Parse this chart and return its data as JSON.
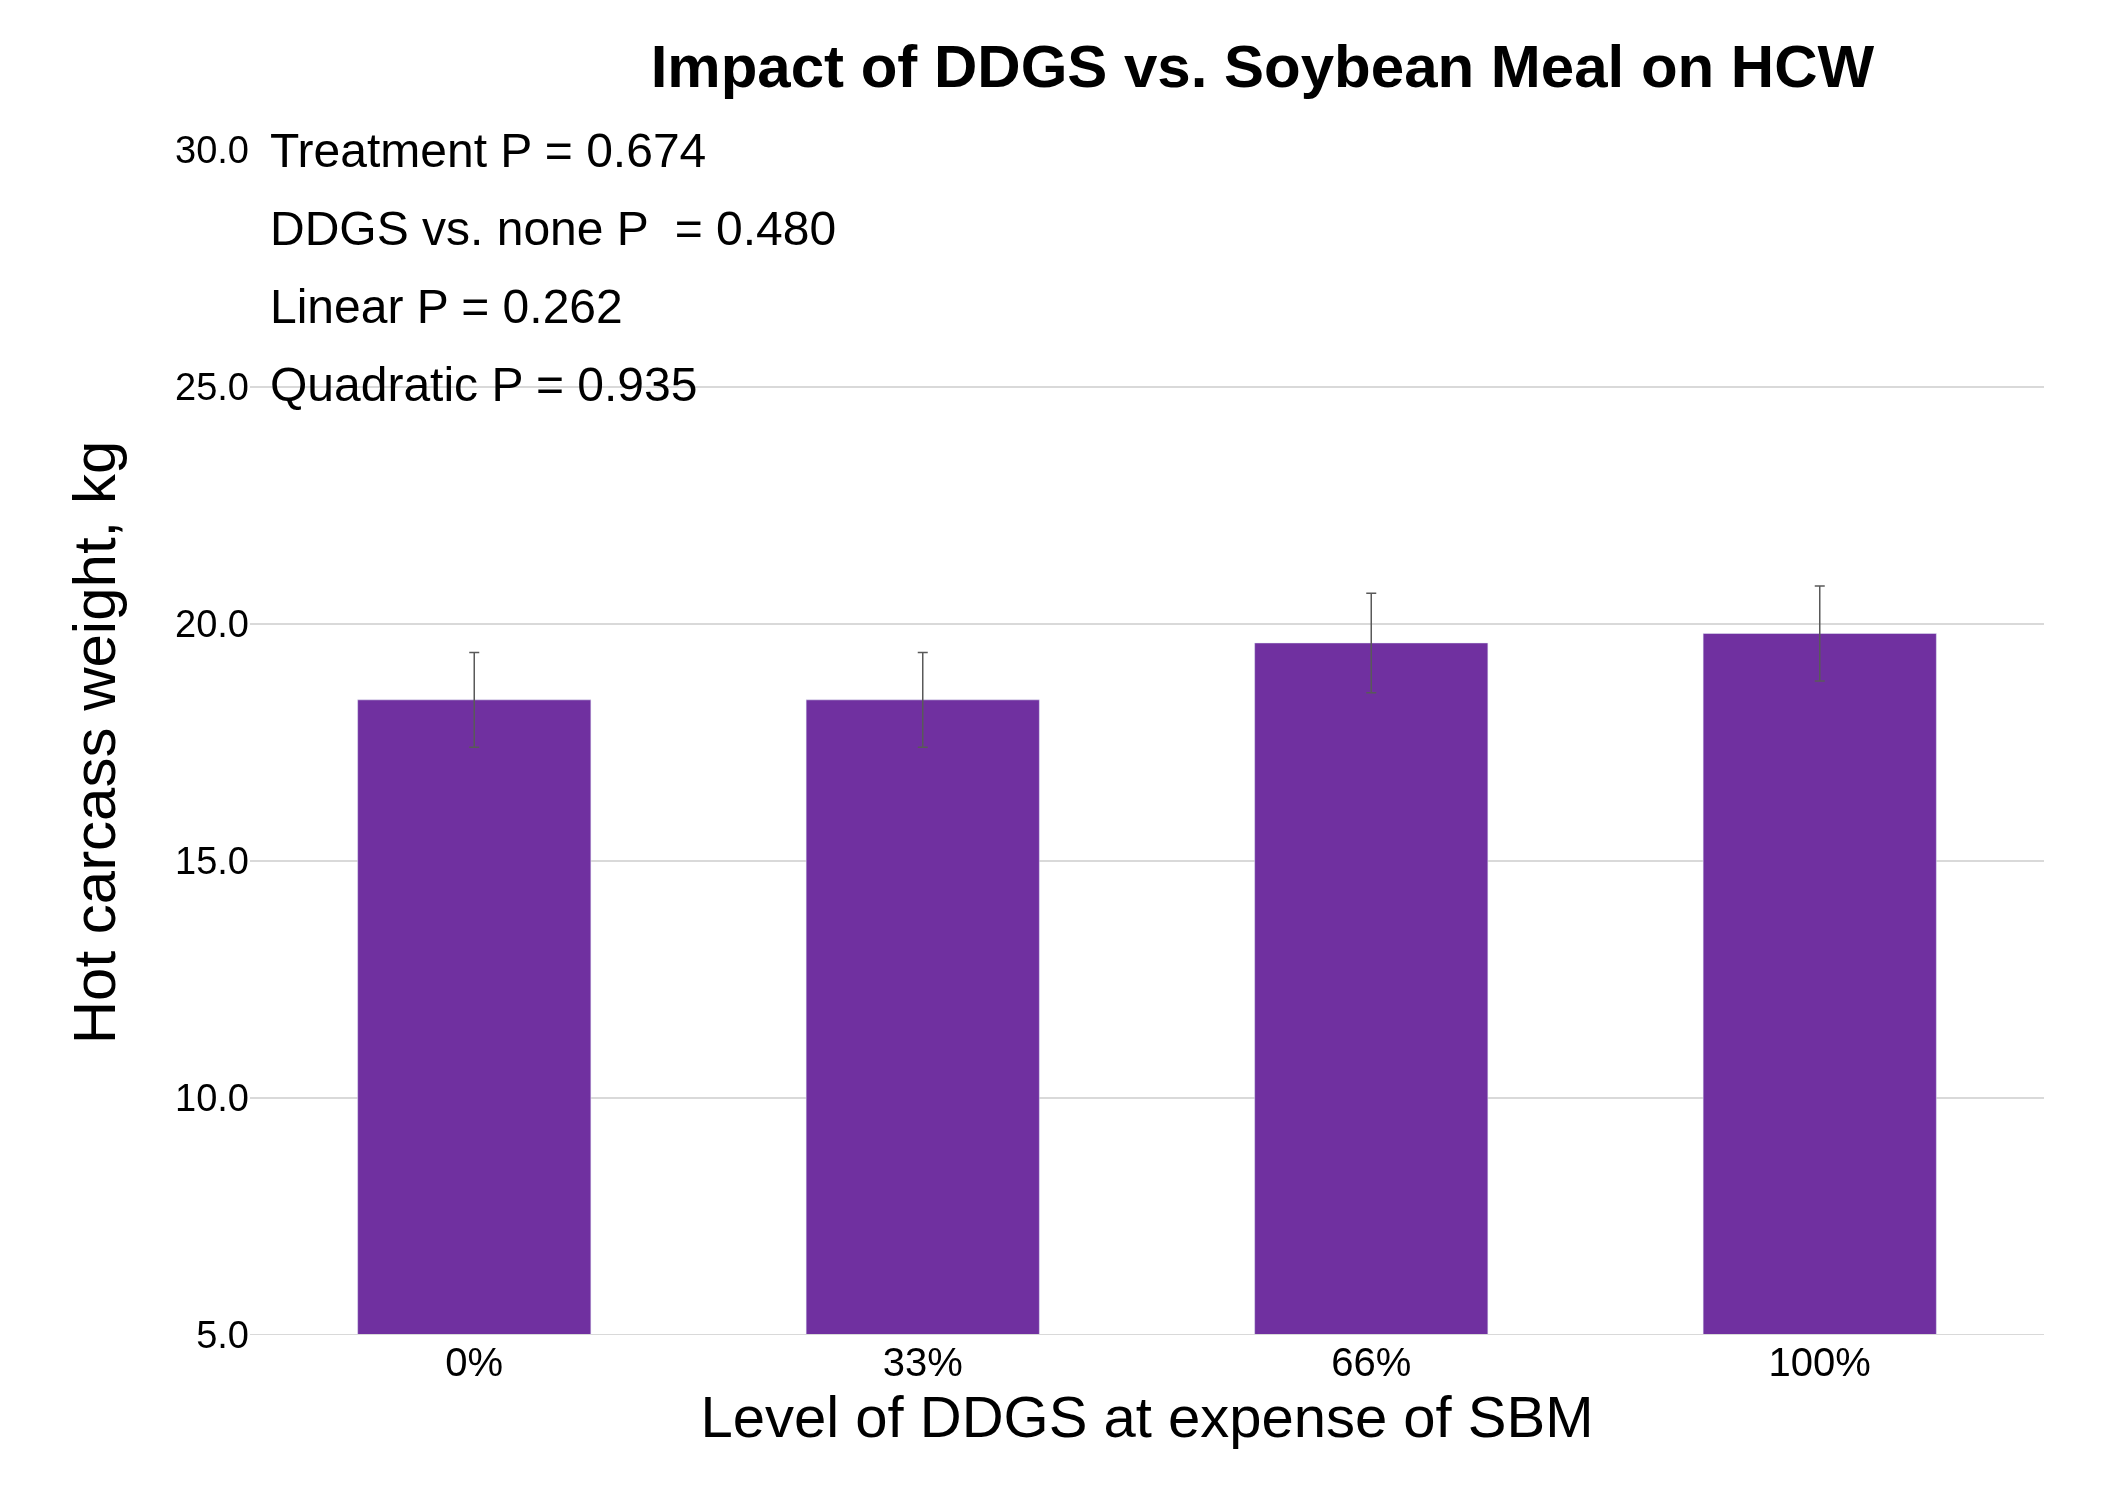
{
  "chart_data": {
    "type": "bar",
    "title": "Impact of DDGS vs. Soybean Meal on HCW",
    "xlabel": "Level of DDGS at expense of SBM",
    "ylabel": "Hot carcass weight, kg",
    "categories": [
      "0%",
      "33%",
      "66%",
      "100%"
    ],
    "values": [
      18.4,
      18.4,
      19.6,
      19.8
    ],
    "errors": [
      1.0,
      1.0,
      1.05,
      1.0
    ],
    "color": "#7030a0",
    "ylim": [
      5,
      30
    ],
    "yticks": [
      {
        "value": 5,
        "label": "5.0"
      },
      {
        "value": 10,
        "label": "10.0"
      },
      {
        "value": 15,
        "label": "15.0"
      },
      {
        "value": 20,
        "label": "20.0"
      },
      {
        "value": 25,
        "label": "25.0"
      },
      {
        "value": 30,
        "label": "30.0"
      }
    ],
    "grid": "y",
    "annotations": [
      "Treatment P = 0.674",
      "DDGS vs. none P  = 0.480",
      "Linear P = 0.262",
      "Quadratic P = 0.935"
    ]
  }
}
